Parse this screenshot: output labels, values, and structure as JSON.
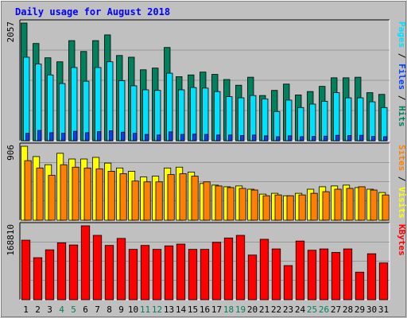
{
  "chart_data": {
    "type": "bar",
    "title": "Daily usage for August 2018",
    "categories": [
      "1",
      "2",
      "3",
      "4",
      "5",
      "6",
      "7",
      "8",
      "9",
      "10",
      "11",
      "12",
      "13",
      "14",
      "15",
      "16",
      "17",
      "18",
      "19",
      "20",
      "21",
      "22",
      "23",
      "24",
      "25",
      "26",
      "27",
      "28",
      "29",
      "30",
      "31"
    ],
    "weekend_days": [
      4,
      5,
      11,
      12,
      18,
      19,
      25,
      26
    ],
    "colors": {
      "hits": "#00805c",
      "files": "#00e0ff",
      "pages": "#0040ff",
      "visits": "#ffff00",
      "sites": "#ff8000",
      "kbytes": "#ff0000",
      "title": "#0000ff",
      "weekday_label": "#000000",
      "weekend_label": "#00805c",
      "panel_bg": "#c0c0c0",
      "grid": "#707070"
    },
    "panels": [
      {
        "id": "hits_files_pages",
        "ymax_label": "2057",
        "ylim": [
          0,
          2057
        ],
        "legend_right": [
          {
            "text": "Pages",
            "color": "#00e0ff"
          },
          {
            "text": " / ",
            "color": "#000000"
          },
          {
            "text": "Files",
            "color": "#0040ff"
          },
          {
            "text": " / ",
            "color": "#000000"
          },
          {
            "text": "Hits",
            "color": "#00805c"
          }
        ],
        "series": [
          {
            "name": "Hits",
            "color": "#00805c",
            "values": [
              2057,
              1700,
              1450,
              1380,
              1750,
              1560,
              1750,
              1850,
              1490,
              1460,
              1240,
              1270,
              1630,
              1120,
              1150,
              1200,
              1160,
              1070,
              970,
              1110,
              790,
              880,
              990,
              800,
              860,
              950,
              1100,
              1100,
              1110,
              840,
              810
            ]
          },
          {
            "name": "Files",
            "color": "#00e0ff",
            "values": [
              1460,
              1340,
              1150,
              1000,
              1280,
              1040,
              1280,
              1380,
              1050,
              960,
              890,
              880,
              1180,
              890,
              930,
              920,
              860,
              770,
              750,
              790,
              730,
              510,
              710,
              580,
              640,
              690,
              840,
              750,
              750,
              680,
              580
            ]
          },
          {
            "name": "Pages",
            "color": "#0040ff",
            "values": [
              130,
              180,
              140,
              130,
              165,
              140,
              160,
              175,
              150,
              130,
              110,
              100,
              155,
              110,
              115,
              110,
              100,
              100,
              90,
              100,
              85,
              70,
              85,
              70,
              75,
              80,
              95,
              90,
              95,
              75,
              70
            ]
          }
        ]
      },
      {
        "id": "visits_sites",
        "ymax_label": "906",
        "ylim": [
          0,
          906
        ],
        "legend_right": [
          {
            "text": "Sites",
            "color": "#ff8000"
          },
          {
            "text": " / ",
            "color": "#000000"
          },
          {
            "text": "Visits",
            "color": "#ffff00"
          }
        ],
        "series": [
          {
            "name": "Visits",
            "color": "#ffff00",
            "values": [
              906,
              780,
              680,
              820,
              750,
              750,
              770,
              700,
              640,
              600,
              530,
              540,
              640,
              650,
              590,
              450,
              430,
              410,
              420,
              380,
              320,
              330,
              300,
              330,
              380,
              410,
              420,
              430,
              400,
              380,
              340
            ]
          },
          {
            "name": "Sites",
            "color": "#ff8000",
            "values": [
              730,
              640,
              550,
              680,
              650,
              640,
              630,
              600,
              570,
              480,
              470,
              470,
              560,
              570,
              540,
              470,
              420,
              400,
              390,
              370,
              300,
              310,
              300,
              310,
              330,
              350,
              380,
              390,
              410,
              370,
              310
            ]
          }
        ]
      },
      {
        "id": "kbytes",
        "ymax_label": "168810",
        "ylim": [
          0,
          168810
        ],
        "legend_right": [
          {
            "text": "KBytes",
            "color": "#ff0000"
          }
        ],
        "series": [
          {
            "name": "KBytes",
            "color": "#ff0000",
            "values": [
              136000,
              96000,
              114000,
              130000,
              125000,
              168810,
              147000,
              124000,
              140000,
              115000,
              124000,
              115000,
              123000,
              127000,
              115000,
              115000,
              131000,
              141000,
              147000,
              102000,
              138000,
              116000,
              78000,
              134000,
              113000,
              116000,
              108000,
              116000,
              63000,
              105000,
              84000
            ]
          }
        ]
      }
    ]
  }
}
